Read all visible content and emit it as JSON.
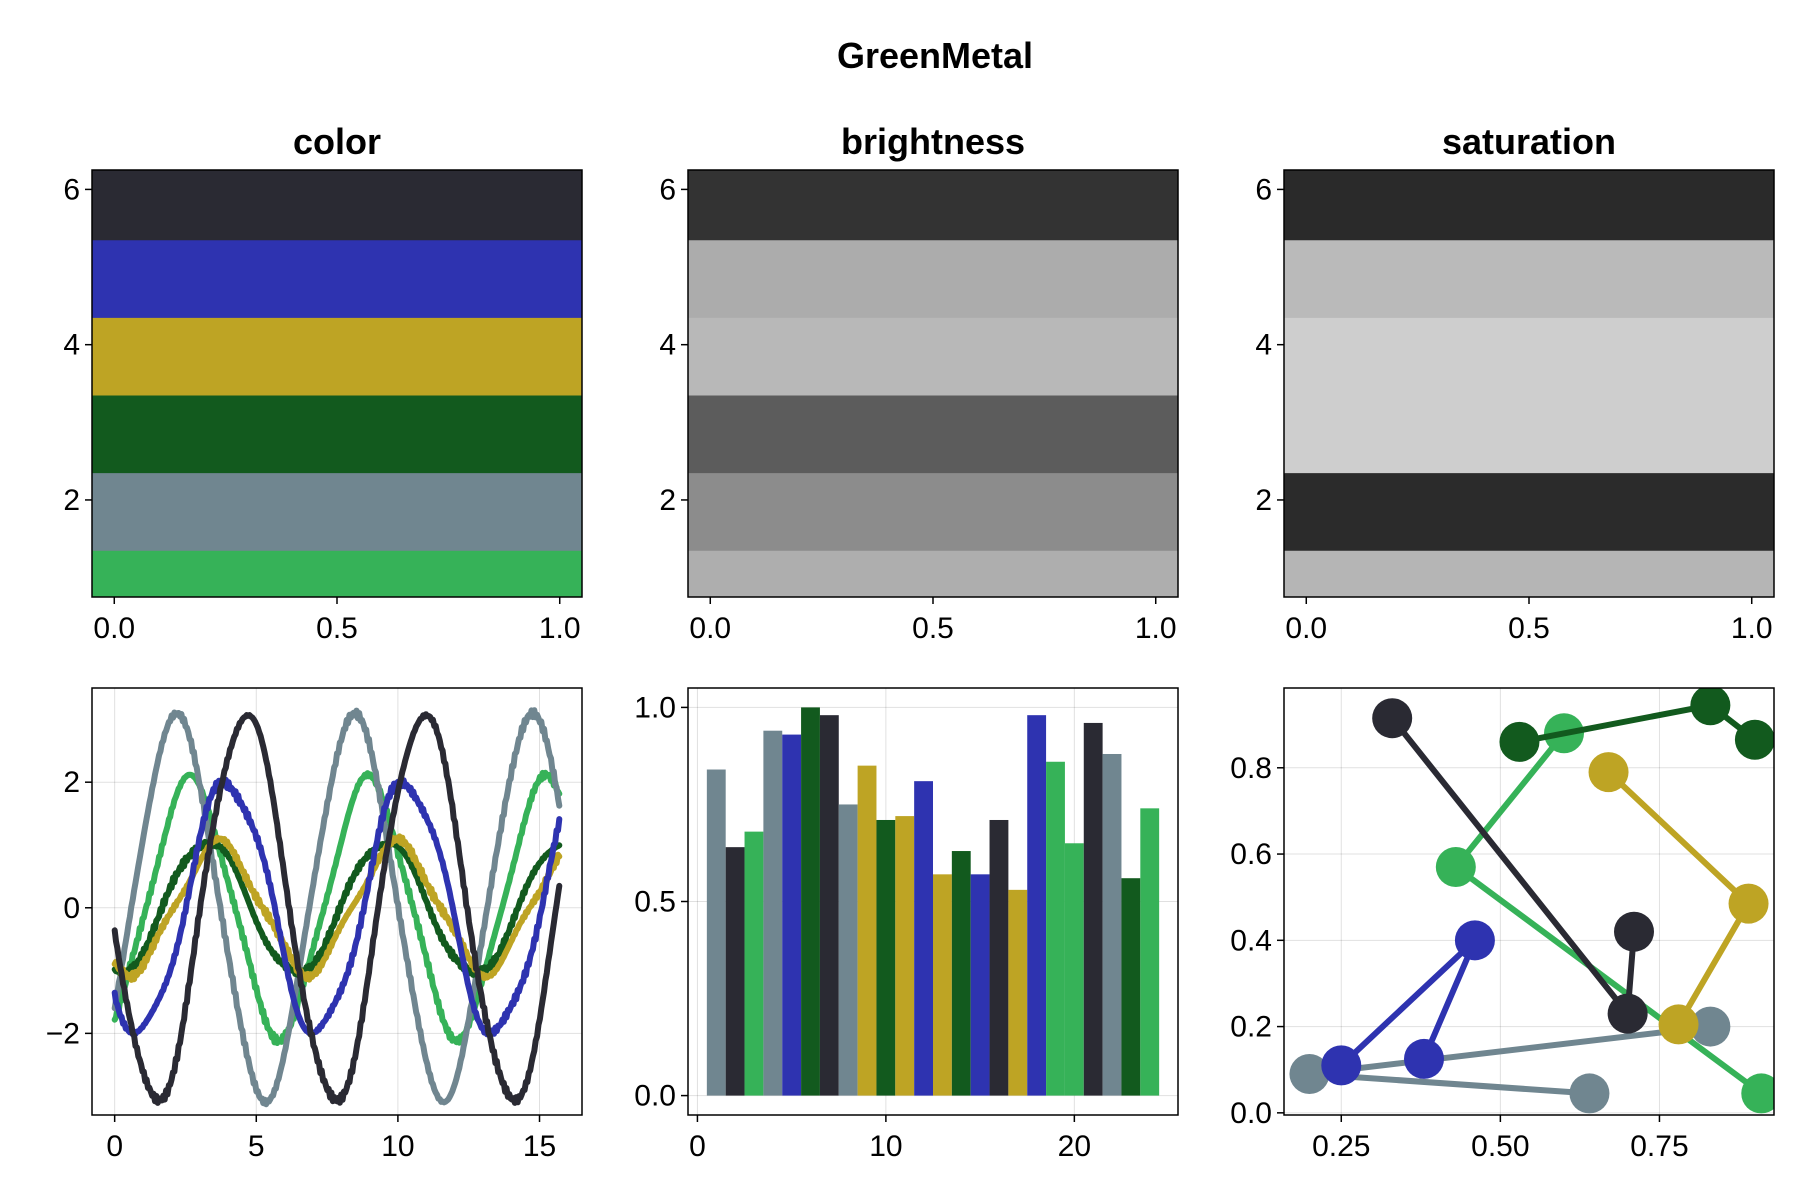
{
  "figure": {
    "title": "GreenMetal"
  },
  "palette": [
    "#36b258",
    "#708690",
    "#125a1e",
    "#bea424",
    "#2e33b0",
    "#2a2a33"
  ],
  "chart_data": [
    {
      "id": "color",
      "type": "heatmap",
      "title": "color",
      "x_ticks": [
        "0.0",
        "0.5",
        "1.0"
      ],
      "y_ticks": [
        "2",
        "4",
        "6"
      ],
      "xlim": [
        -0.05,
        1.05
      ],
      "ylim": [
        0.75,
        6.25
      ],
      "bands": [
        {
          "y": 1,
          "color": "#36b258"
        },
        {
          "y": 2,
          "color": "#708690"
        },
        {
          "y": 3,
          "color": "#125a1e"
        },
        {
          "y": 4,
          "color": "#bea424"
        },
        {
          "y": 5,
          "color": "#2e33b0"
        },
        {
          "y": 6,
          "color": "#2a2a33"
        }
      ]
    },
    {
      "id": "brightness",
      "type": "heatmap",
      "title": "brightness",
      "x_ticks": [
        "0.0",
        "0.5",
        "1.0"
      ],
      "y_ticks": [
        "2",
        "4",
        "6"
      ],
      "xlim": [
        -0.05,
        1.05
      ],
      "ylim": [
        0.75,
        6.25
      ],
      "bands": [
        {
          "y": 1,
          "color": "#aeaeae"
        },
        {
          "y": 2,
          "color": "#8c8c8c"
        },
        {
          "y": 3,
          "color": "#5c5c5c"
        },
        {
          "y": 4,
          "color": "#b8b8b8"
        },
        {
          "y": 5,
          "color": "#acacac"
        },
        {
          "y": 6,
          "color": "#333333"
        }
      ]
    },
    {
      "id": "saturation",
      "type": "heatmap",
      "title": "saturation",
      "x_ticks": [
        "0.0",
        "0.5",
        "1.0"
      ],
      "y_ticks": [
        "2",
        "4",
        "6"
      ],
      "xlim": [
        -0.05,
        1.05
      ],
      "ylim": [
        0.75,
        6.25
      ],
      "bands": [
        {
          "y": 1,
          "color": "#b5b5b5"
        },
        {
          "y": 2,
          "color": "#2b2b2b"
        },
        {
          "y": 3,
          "color": "#cecece"
        },
        {
          "y": 4,
          "color": "#cecece"
        },
        {
          "y": 5,
          "color": "#bababa"
        },
        {
          "y": 6,
          "color": "#2a2a2a"
        }
      ]
    },
    {
      "id": "lines",
      "type": "line",
      "title": "",
      "xlim": [
        -0.8,
        16.5
      ],
      "ylim": [
        -3.3,
        3.5
      ],
      "x_ticks": [
        0,
        5,
        10,
        15
      ],
      "y_ticks": [
        2,
        0,
        -2
      ],
      "x_tick_labels": [
        "0",
        "5",
        "10",
        "15"
      ],
      "y_tick_labels": [
        "2",
        "0",
        "−2"
      ],
      "grid": true,
      "x_range": [
        0,
        15.7
      ],
      "series": [
        {
          "amp": 2.0,
          "phase": -1.1,
          "offset": 0.12,
          "color": "#36b258"
        },
        {
          "amp": 3.0,
          "phase": -0.6,
          "offset": 0.1,
          "color": "#708690"
        },
        {
          "amp": 1.05,
          "phase": -1.7,
          "offset": 0.05,
          "color": "#125a1e"
        },
        {
          "amp": 1.0,
          "phase": -2.1,
          "offset": 0.1,
          "color": "#bea424"
        },
        {
          "amp": 2.0,
          "phase": -2.45,
          "offset": 0.15,
          "color": "#2e33b0"
        },
        {
          "amp": 3.05,
          "phase": -3.05,
          "offset": 0.1,
          "color": "#2a2a33"
        }
      ]
    },
    {
      "id": "bars",
      "type": "bar",
      "title": "",
      "xlim": [
        -0.5,
        25.5
      ],
      "ylim": [
        -0.05,
        1.05
      ],
      "x_ticks": [
        0,
        10,
        20
      ],
      "y_ticks": [
        0.0,
        0.5,
        1.0
      ],
      "x_tick_labels": [
        "0",
        "10",
        "20"
      ],
      "y_tick_labels": [
        "0.0",
        "0.5",
        "1.0"
      ],
      "grid": true,
      "bars": [
        {
          "x": 1,
          "value": 0.84,
          "color": "#708690"
        },
        {
          "x": 2,
          "value": 0.64,
          "color": "#2a2a33"
        },
        {
          "x": 3,
          "value": 0.68,
          "color": "#36b258"
        },
        {
          "x": 4,
          "value": 0.94,
          "color": "#708690"
        },
        {
          "x": 5,
          "value": 0.93,
          "color": "#2e33b0"
        },
        {
          "x": 6,
          "value": 1.0,
          "color": "#125a1e"
        },
        {
          "x": 7,
          "value": 0.98,
          "color": "#2a2a33"
        },
        {
          "x": 8,
          "value": 0.75,
          "color": "#708690"
        },
        {
          "x": 9,
          "value": 0.85,
          "color": "#bea424"
        },
        {
          "x": 10,
          "value": 0.71,
          "color": "#125a1e"
        },
        {
          "x": 11,
          "value": 0.72,
          "color": "#bea424"
        },
        {
          "x": 12,
          "value": 0.81,
          "color": "#2e33b0"
        },
        {
          "x": 13,
          "value": 0.57,
          "color": "#bea424"
        },
        {
          "x": 14,
          "value": 0.63,
          "color": "#125a1e"
        },
        {
          "x": 15,
          "value": 0.57,
          "color": "#2e33b0"
        },
        {
          "x": 16,
          "value": 0.71,
          "color": "#2a2a33"
        },
        {
          "x": 17,
          "value": 0.53,
          "color": "#bea424"
        },
        {
          "x": 18,
          "value": 0.98,
          "color": "#2e33b0"
        },
        {
          "x": 19,
          "value": 0.86,
          "color": "#36b258"
        },
        {
          "x": 20,
          "value": 0.65,
          "color": "#36b258"
        },
        {
          "x": 21,
          "value": 0.96,
          "color": "#2a2a33"
        },
        {
          "x": 22,
          "value": 0.88,
          "color": "#708690"
        },
        {
          "x": 23,
          "value": 0.56,
          "color": "#125a1e"
        },
        {
          "x": 24,
          "value": 0.74,
          "color": "#36b258"
        }
      ]
    },
    {
      "id": "scatter",
      "type": "scatter",
      "title": "",
      "xlim": [
        0.16,
        0.93
      ],
      "ylim": [
        -0.005,
        0.985
      ],
      "x_ticks": [
        0.25,
        0.5,
        0.75
      ],
      "y_ticks": [
        0.0,
        0.2,
        0.4,
        0.6,
        0.8
      ],
      "x_tick_labels": [
        "0.25",
        "0.50",
        "0.75"
      ],
      "y_tick_labels": [
        "0.0",
        "0.2",
        "0.4",
        "0.6",
        "0.8"
      ],
      "grid": true,
      "series": [
        {
          "color": "#36b258",
          "points": [
            [
              0.91,
              0.045
            ],
            [
              0.43,
              0.57
            ],
            [
              0.6,
              0.88
            ]
          ]
        },
        {
          "color": "#708690",
          "points": [
            [
              0.64,
              0.045
            ],
            [
              0.2,
              0.09
            ],
            [
              0.83,
              0.2
            ]
          ]
        },
        {
          "color": "#125a1e",
          "points": [
            [
              0.53,
              0.86
            ],
            [
              0.83,
              0.945
            ],
            [
              0.9,
              0.865
            ]
          ]
        },
        {
          "color": "#bea424",
          "points": [
            [
              0.78,
              0.205
            ],
            [
              0.89,
              0.485
            ],
            [
              0.67,
              0.79
            ]
          ]
        },
        {
          "color": "#2e33b0",
          "points": [
            [
              0.38,
              0.125
            ],
            [
              0.46,
              0.4
            ],
            [
              0.25,
              0.11
            ]
          ]
        },
        {
          "color": "#2a2a33",
          "points": [
            [
              0.71,
              0.42
            ],
            [
              0.7,
              0.23
            ],
            [
              0.33,
              0.915
            ]
          ]
        }
      ]
    }
  ]
}
